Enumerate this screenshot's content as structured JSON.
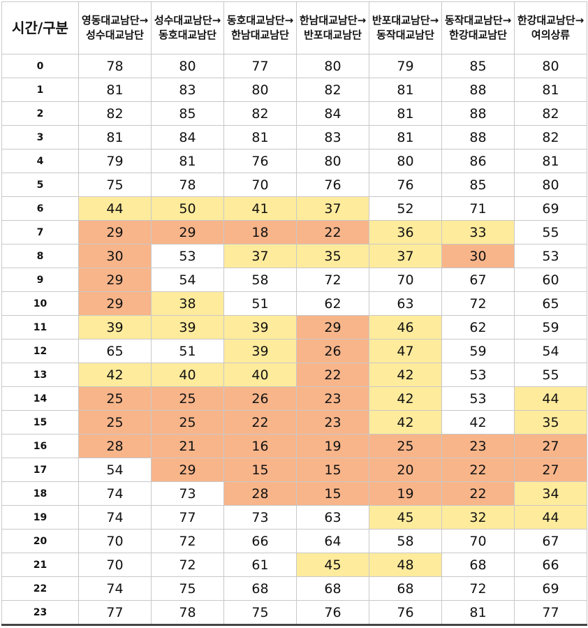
{
  "table": {
    "corner_label": "시간/구분",
    "columns": [
      "영동대교남단→성수대교남단",
      "성수대교남단→동호대교남단",
      "동호대교남단→한남대교남단",
      "한남대교남단→반포대교남단",
      "반포대교남단→동작대교남단",
      "동작대교남단→한강대교남단",
      "한강대교남단→여의상류"
    ],
    "highlight_colors": {
      "yellow": "#ffeb9c",
      "orange": "#f8b58a"
    },
    "rows": [
      {
        "hour": "0",
        "values": [
          "78",
          "80",
          "77",
          "80",
          "79",
          "85",
          "80"
        ],
        "colors": [
          "",
          "",
          "",
          "",
          "",
          "",
          ""
        ]
      },
      {
        "hour": "1",
        "values": [
          "81",
          "83",
          "80",
          "82",
          "81",
          "88",
          "81"
        ],
        "colors": [
          "",
          "",
          "",
          "",
          "",
          "",
          ""
        ]
      },
      {
        "hour": "2",
        "values": [
          "82",
          "85",
          "82",
          "84",
          "81",
          "88",
          "82"
        ],
        "colors": [
          "",
          "",
          "",
          "",
          "",
          "",
          ""
        ]
      },
      {
        "hour": "3",
        "values": [
          "81",
          "84",
          "81",
          "83",
          "81",
          "88",
          "82"
        ],
        "colors": [
          "",
          "",
          "",
          "",
          "",
          "",
          ""
        ]
      },
      {
        "hour": "4",
        "values": [
          "79",
          "81",
          "76",
          "80",
          "80",
          "86",
          "81"
        ],
        "colors": [
          "",
          "",
          "",
          "",
          "",
          "",
          ""
        ]
      },
      {
        "hour": "5",
        "values": [
          "75",
          "78",
          "70",
          "76",
          "76",
          "85",
          "80"
        ],
        "colors": [
          "",
          "",
          "",
          "",
          "",
          "",
          ""
        ]
      },
      {
        "hour": "6",
        "values": [
          "44",
          "50",
          "41",
          "37",
          "52",
          "71",
          "69"
        ],
        "colors": [
          "yellow",
          "yellow",
          "yellow",
          "yellow",
          "",
          "",
          ""
        ]
      },
      {
        "hour": "7",
        "values": [
          "29",
          "29",
          "18",
          "22",
          "36",
          "33",
          "55"
        ],
        "colors": [
          "orange",
          "orange",
          "orange",
          "orange",
          "yellow",
          "yellow",
          ""
        ]
      },
      {
        "hour": "8",
        "values": [
          "30",
          "53",
          "37",
          "35",
          "37",
          "30",
          "53"
        ],
        "colors": [
          "orange",
          "",
          "yellow",
          "yellow",
          "yellow",
          "orange",
          ""
        ]
      },
      {
        "hour": "9",
        "values": [
          "29",
          "54",
          "58",
          "72",
          "70",
          "67",
          "60"
        ],
        "colors": [
          "orange",
          "",
          "",
          "",
          "",
          "",
          ""
        ]
      },
      {
        "hour": "10",
        "values": [
          "29",
          "38",
          "51",
          "62",
          "63",
          "72",
          "65"
        ],
        "colors": [
          "orange",
          "yellow",
          "",
          "",
          "",
          "",
          ""
        ]
      },
      {
        "hour": "11",
        "values": [
          "39",
          "39",
          "39",
          "29",
          "46",
          "62",
          "59"
        ],
        "colors": [
          "yellow",
          "yellow",
          "yellow",
          "orange",
          "yellow",
          "",
          ""
        ]
      },
      {
        "hour": "12",
        "values": [
          "65",
          "51",
          "39",
          "26",
          "47",
          "59",
          "54"
        ],
        "colors": [
          "",
          "",
          "yellow",
          "orange",
          "yellow",
          "",
          ""
        ]
      },
      {
        "hour": "13",
        "values": [
          "42",
          "40",
          "40",
          "22",
          "42",
          "53",
          "55"
        ],
        "colors": [
          "yellow",
          "yellow",
          "yellow",
          "orange",
          "yellow",
          "",
          ""
        ]
      },
      {
        "hour": "14",
        "values": [
          "25",
          "25",
          "26",
          "23",
          "42",
          "53",
          "44"
        ],
        "colors": [
          "orange",
          "orange",
          "orange",
          "orange",
          "yellow",
          "",
          "yellow"
        ]
      },
      {
        "hour": "15",
        "values": [
          "25",
          "25",
          "22",
          "23",
          "42",
          "42",
          "35"
        ],
        "colors": [
          "orange",
          "orange",
          "orange",
          "orange",
          "yellow",
          "",
          "yellow"
        ]
      },
      {
        "hour": "16",
        "values": [
          "28",
          "21",
          "16",
          "19",
          "25",
          "23",
          "27"
        ],
        "colors": [
          "orange",
          "orange",
          "orange",
          "orange",
          "orange",
          "orange",
          "orange"
        ]
      },
      {
        "hour": "17",
        "values": [
          "54",
          "29",
          "15",
          "15",
          "20",
          "22",
          "27"
        ],
        "colors": [
          "",
          "orange",
          "orange",
          "orange",
          "orange",
          "orange",
          "orange"
        ]
      },
      {
        "hour": "18",
        "values": [
          "74",
          "73",
          "28",
          "15",
          "19",
          "22",
          "34"
        ],
        "colors": [
          "",
          "",
          "orange",
          "orange",
          "orange",
          "orange",
          "yellow"
        ]
      },
      {
        "hour": "19",
        "values": [
          "74",
          "77",
          "73",
          "63",
          "45",
          "32",
          "44"
        ],
        "colors": [
          "",
          "",
          "",
          "",
          "yellow",
          "yellow",
          "yellow"
        ]
      },
      {
        "hour": "20",
        "values": [
          "70",
          "72",
          "66",
          "64",
          "58",
          "70",
          "67"
        ],
        "colors": [
          "",
          "",
          "",
          "",
          "",
          "",
          ""
        ]
      },
      {
        "hour": "21",
        "values": [
          "70",
          "72",
          "61",
          "45",
          "48",
          "68",
          "66"
        ],
        "colors": [
          "",
          "",
          "",
          "yellow",
          "yellow",
          "",
          ""
        ]
      },
      {
        "hour": "22",
        "values": [
          "74",
          "75",
          "68",
          "68",
          "68",
          "72",
          "69"
        ],
        "colors": [
          "",
          "",
          "",
          "",
          "",
          "",
          ""
        ]
      },
      {
        "hour": "23",
        "values": [
          "77",
          "78",
          "75",
          "76",
          "76",
          "81",
          "77"
        ],
        "colors": [
          "",
          "",
          "",
          "",
          "",
          "",
          ""
        ]
      }
    ]
  }
}
